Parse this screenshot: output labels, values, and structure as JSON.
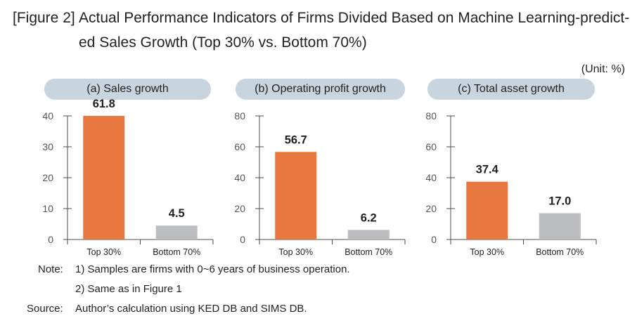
{
  "figure": {
    "title_prefix": "[Figure 2]",
    "title_line1": "Actual Performance Indicators of Firms Divided Based on Machine Learning-predict-",
    "title_line2": "ed Sales Growth (Top 30% vs. Bottom 70%)",
    "unit": "(Unit: %)"
  },
  "colors": {
    "top": "#e8783f",
    "bottom": "#bcbdc0",
    "pill": "#c8d5df",
    "axis": "#4d4d4d"
  },
  "chart_data": [
    {
      "type": "bar",
      "title": "(a) Sales growth",
      "categories": [
        "Top 30%",
        "Bottom 70%"
      ],
      "values": [
        61.8,
        4.5
      ],
      "value_labels": [
        "61.8",
        "4.5"
      ],
      "ylim": [
        0,
        40
      ],
      "yticks": [
        "0",
        "10",
        "20",
        "30",
        "40"
      ]
    },
    {
      "type": "bar",
      "title": "(b) Operating profit growth",
      "categories": [
        "Top 30%",
        "Bottom 70%"
      ],
      "values": [
        56.7,
        6.2
      ],
      "value_labels": [
        "56.7",
        "6.2"
      ],
      "ylim": [
        0,
        80
      ],
      "yticks": [
        "0",
        "20",
        "40",
        "60",
        "80"
      ]
    },
    {
      "type": "bar",
      "title": "(c) Total asset growth",
      "categories": [
        "Top 30%",
        "Bottom 70%"
      ],
      "values": [
        37.4,
        17.0
      ],
      "value_labels": [
        "37.4",
        "17.0"
      ],
      "ylim": [
        0,
        80
      ],
      "yticks": [
        "0",
        "20",
        "40",
        "60",
        "80"
      ]
    }
  ],
  "notes": {
    "note_label": "Note:",
    "note_1": "1) Samples are firms with 0~6 years of business operation.",
    "note_2": "2) Same as in Figure 1",
    "source_label": "Source:",
    "source_text": "Author’s calculation using KED DB and SIMS DB."
  }
}
